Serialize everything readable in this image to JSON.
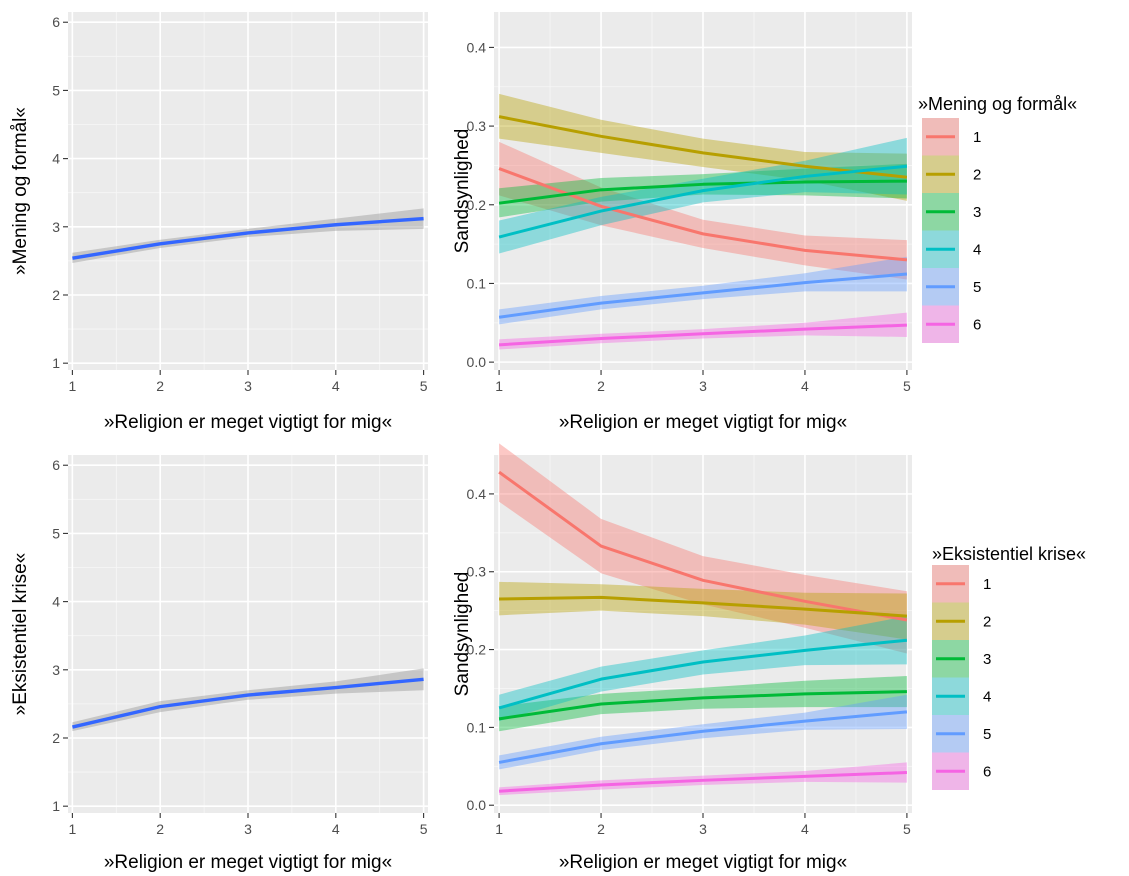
{
  "chart_data": [
    {
      "id": "top-left",
      "type": "line",
      "xlabel": "»Religion er meget vigtigt for mig«",
      "ylabel": "»Mening og formål«",
      "xlim": [
        0.95,
        5.05
      ],
      "ylim": [
        0.9,
        6.15
      ],
      "xticks": [
        "1",
        "2",
        "3",
        "4",
        "5"
      ],
      "yticks": [
        "1",
        "2",
        "3",
        "4",
        "5",
        "6"
      ],
      "grid": true,
      "series": [
        {
          "x": [
            1,
            2,
            3,
            4,
            5
          ],
          "y": [
            2.54,
            2.75,
            2.91,
            3.03,
            3.12
          ],
          "lower": [
            2.47,
            2.69,
            2.85,
            2.94,
            2.97
          ],
          "upper": [
            2.62,
            2.81,
            2.97,
            3.12,
            3.27
          ],
          "color": "#3366ff",
          "ribbon_color": "#999999"
        }
      ]
    },
    {
      "id": "top-right",
      "type": "line",
      "xlabel": "»Religion er meget vigtigt for mig«",
      "ylabel": "Sandsynlighed",
      "xlim": [
        0.95,
        5.05
      ],
      "ylim": [
        -0.01,
        0.445
      ],
      "xticks": [
        "1",
        "2",
        "3",
        "4",
        "5"
      ],
      "yticks": [
        "0.0",
        "0.1",
        "0.2",
        "0.3",
        "0.4"
      ],
      "grid": true,
      "legend": {
        "title": "»Mening og formål«",
        "position": "right"
      },
      "series": [
        {
          "name": "1",
          "color": "#F8766D",
          "x": [
            1,
            2,
            3,
            4,
            5
          ],
          "y": [
            0.246,
            0.198,
            0.163,
            0.142,
            0.13
          ],
          "lower": [
            0.212,
            0.174,
            0.145,
            0.123,
            0.105
          ],
          "upper": [
            0.28,
            0.222,
            0.181,
            0.161,
            0.155
          ]
        },
        {
          "name": "2",
          "color": "#B79F00",
          "x": [
            1,
            2,
            3,
            4,
            5
          ],
          "y": [
            0.312,
            0.287,
            0.266,
            0.249,
            0.235
          ],
          "lower": [
            0.284,
            0.266,
            0.248,
            0.231,
            0.205
          ],
          "upper": [
            0.341,
            0.308,
            0.284,
            0.267,
            0.265
          ]
        },
        {
          "name": "3",
          "color": "#00BA38",
          "x": [
            1,
            2,
            3,
            4,
            5
          ],
          "y": [
            0.202,
            0.219,
            0.226,
            0.229,
            0.23
          ],
          "lower": [
            0.184,
            0.204,
            0.213,
            0.212,
            0.208
          ],
          "upper": [
            0.221,
            0.234,
            0.239,
            0.246,
            0.252
          ]
        },
        {
          "name": "4",
          "color": "#00BFC4",
          "x": [
            1,
            2,
            3,
            4,
            5
          ],
          "y": [
            0.159,
            0.192,
            0.218,
            0.236,
            0.249
          ],
          "lower": [
            0.138,
            0.174,
            0.203,
            0.216,
            0.213
          ],
          "upper": [
            0.18,
            0.21,
            0.233,
            0.256,
            0.285
          ]
        },
        {
          "name": "5",
          "color": "#619CFF",
          "x": [
            1,
            2,
            3,
            4,
            5
          ],
          "y": [
            0.057,
            0.075,
            0.088,
            0.101,
            0.112
          ],
          "lower": [
            0.048,
            0.067,
            0.08,
            0.09,
            0.09
          ],
          "upper": [
            0.067,
            0.084,
            0.097,
            0.113,
            0.134
          ]
        },
        {
          "name": "6",
          "color": "#F564E3",
          "x": [
            1,
            2,
            3,
            4,
            5
          ],
          "y": [
            0.022,
            0.03,
            0.036,
            0.042,
            0.047
          ],
          "lower": [
            0.016,
            0.024,
            0.03,
            0.034,
            0.032
          ],
          "upper": [
            0.029,
            0.036,
            0.042,
            0.05,
            0.063
          ]
        }
      ]
    },
    {
      "id": "bottom-left",
      "type": "line",
      "xlabel": "»Religion er meget vigtigt for mig«",
      "ylabel": "»Eksistentiel krise«",
      "xlim": [
        0.95,
        5.05
      ],
      "ylim": [
        0.9,
        6.15
      ],
      "xticks": [
        "1",
        "2",
        "3",
        "4",
        "5"
      ],
      "yticks": [
        "1",
        "2",
        "3",
        "4",
        "5",
        "6"
      ],
      "grid": true,
      "series": [
        {
          "x": [
            1,
            2,
            3,
            4,
            5
          ],
          "y": [
            2.16,
            2.46,
            2.63,
            2.74,
            2.86
          ],
          "lower": [
            2.1,
            2.38,
            2.56,
            2.65,
            2.7
          ],
          "upper": [
            2.23,
            2.54,
            2.7,
            2.83,
            3.02
          ],
          "color": "#3366ff",
          "ribbon_color": "#999999"
        }
      ]
    },
    {
      "id": "bottom-right",
      "type": "line",
      "xlabel": "»Religion er meget vigtigt for mig«",
      "ylabel": "Sandsynlighed",
      "xlim": [
        0.95,
        5.05
      ],
      "ylim": [
        -0.01,
        0.45
      ],
      "xticks": [
        "1",
        "2",
        "3",
        "4",
        "5"
      ],
      "yticks": [
        "0.0",
        "0.1",
        "0.2",
        "0.3",
        "0.4"
      ],
      "grid": true,
      "legend": {
        "title": "»Eksistentiel krise«",
        "position": "right"
      },
      "series": [
        {
          "name": "1",
          "color": "#F8766D",
          "x": [
            1,
            2,
            3,
            4,
            5
          ],
          "y": [
            0.428,
            0.333,
            0.289,
            0.262,
            0.238
          ],
          "lower": [
            0.39,
            0.298,
            0.258,
            0.228,
            0.195
          ],
          "upper": [
            0.465,
            0.368,
            0.32,
            0.296,
            0.275
          ]
        },
        {
          "name": "2",
          "color": "#B79F00",
          "x": [
            1,
            2,
            3,
            4,
            5
          ],
          "y": [
            0.265,
            0.267,
            0.26,
            0.252,
            0.243
          ],
          "lower": [
            0.244,
            0.25,
            0.243,
            0.232,
            0.213
          ],
          "upper": [
            0.287,
            0.284,
            0.278,
            0.273,
            0.272
          ]
        },
        {
          "name": "3",
          "color": "#00BA38",
          "x": [
            1,
            2,
            3,
            4,
            5
          ],
          "y": [
            0.111,
            0.13,
            0.138,
            0.143,
            0.146
          ],
          "lower": [
            0.095,
            0.117,
            0.124,
            0.126,
            0.126
          ],
          "upper": [
            0.127,
            0.143,
            0.151,
            0.16,
            0.166
          ]
        },
        {
          "name": "4",
          "color": "#00BFC4",
          "x": [
            1,
            2,
            3,
            4,
            5
          ],
          "y": [
            0.125,
            0.162,
            0.184,
            0.199,
            0.212
          ],
          "lower": [
            0.108,
            0.146,
            0.168,
            0.18,
            0.181
          ],
          "upper": [
            0.142,
            0.178,
            0.199,
            0.218,
            0.243
          ]
        },
        {
          "name": "5",
          "color": "#619CFF",
          "x": [
            1,
            2,
            3,
            4,
            5
          ],
          "y": [
            0.055,
            0.079,
            0.095,
            0.108,
            0.12
          ],
          "lower": [
            0.046,
            0.071,
            0.086,
            0.097,
            0.098
          ],
          "upper": [
            0.064,
            0.088,
            0.104,
            0.119,
            0.142
          ]
        },
        {
          "name": "6",
          "color": "#F564E3",
          "x": [
            1,
            2,
            3,
            4,
            5
          ],
          "y": [
            0.018,
            0.026,
            0.032,
            0.037,
            0.042
          ],
          "lower": [
            0.013,
            0.02,
            0.026,
            0.03,
            0.029
          ],
          "upper": [
            0.023,
            0.032,
            0.038,
            0.044,
            0.055
          ]
        }
      ]
    }
  ]
}
